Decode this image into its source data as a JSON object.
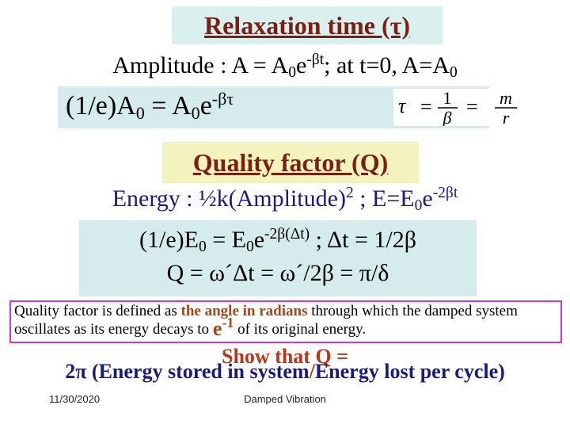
{
  "slide": {
    "title_relaxation": "Relaxation time (τ)",
    "amplitude": {
      "prefix": "Amplitude : A = A",
      "sub0": "0",
      "mid": "e",
      "exp": "-βt",
      "suffix": "; at t=0, A=A",
      "sub1": "0"
    },
    "box1": {
      "lhs_a": "(1/e)A",
      "lhs_sub0": "0",
      "lhs_b": " = A",
      "lhs_sub1": "0",
      "lhs_c": "e",
      "lhs_exp": "-βτ",
      "formula_tau": "τ",
      "formula_eq": "=",
      "formula_num1": "1",
      "formula_den1": "β",
      "formula_num2": "m",
      "formula_den2": "r"
    },
    "title_quality": "Quality factor (Q)",
    "energy": {
      "prefix": "Energy : ½k(Amplitude)",
      "exp2": "2",
      "mid": " ; E=E",
      "sub0": "0",
      "e": "e",
      "exp": "-2βt"
    },
    "box2": {
      "l1_a": "(1/e)E",
      "l1_sub0": "0",
      "l1_b": " = E",
      "l1_sub1": "0",
      "l1_c": "e",
      "l1_exp": "-2β(Δt)",
      "l1_d": " ; Δt = 1/2β",
      "l2": "Q = ω´Δt = ω´/2β = π/δ"
    },
    "definition": {
      "part1": "Quality factor is defined as ",
      "highlight": "the angle in radians",
      "part2": " through which the damped system oscillates as its energy decays to ",
      "e_big": "e",
      "e_exp": "-1",
      "part3": " of its original energy."
    },
    "show_that": "Show that  Q =",
    "show_formula": {
      "a": "2π (Energy stored in system",
      "slash": "/",
      "b": "Energy lost per cycle)"
    },
    "date": "11/30/2020",
    "footer": "Damped Vibration"
  },
  "colors": {
    "title_text": "#7a1f14",
    "title1_bg": "#d9f0ef",
    "title2_bg": "#f4f2bd",
    "box_bg": "#d6ecec",
    "highlight": "#9c4a1c",
    "navy": "#1a1a7a",
    "red": "#b8361a",
    "definition_border": "#c639d6"
  }
}
